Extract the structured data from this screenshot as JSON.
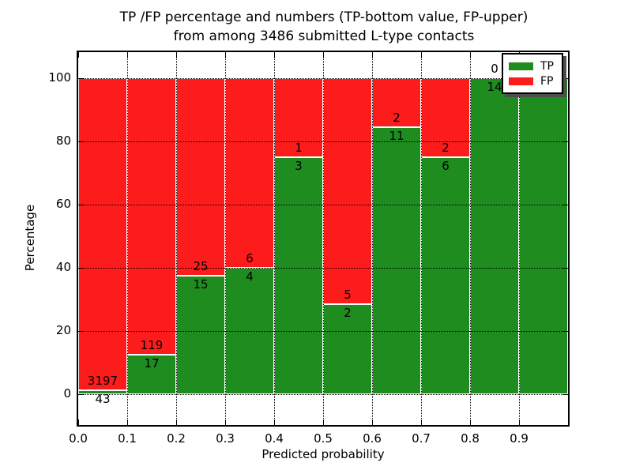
{
  "figure": {
    "title_line1": "TP /FP percentage and numbers (TP-bottom value, FP-upper)",
    "title_line2": "from among 3486 submitted L-type contacts",
    "xlabel": "Predicted probability",
    "ylabel": "Percentage"
  },
  "legend": {
    "position": "upper right",
    "items": [
      {
        "label": "TP",
        "color": "#1E8C1E"
      },
      {
        "label": "FP",
        "color": "#FC1C1C"
      }
    ]
  },
  "chart_data": {
    "type": "bar",
    "stacked": true,
    "normalized_to_percent": true,
    "title": "TP /FP percentage and numbers (TP-bottom value, FP-upper)\nfrom among 3486 submitted L-type contacts",
    "xlabel": "Predicted probability",
    "ylabel": "Percentage",
    "total_submitted": 3486,
    "xlim": [
      0.0,
      1.0
    ],
    "ylim": [
      -9.75,
      108.25
    ],
    "grid": true,
    "grid_style": "dotted",
    "x_tick_labels": [
      "0.0",
      "0.1",
      "0.2",
      "0.3",
      "0.4",
      "0.5",
      "0.6",
      "0.7",
      "0.8",
      "0.9"
    ],
    "y_tick_values": [
      0,
      20,
      40,
      60,
      80,
      100
    ],
    "y_tick_labels": [
      "0",
      "20",
      "40",
      "60",
      "80",
      "100"
    ],
    "colors": {
      "tp": "#1E8C1E",
      "fp": "#FC1C1C"
    },
    "bins": [
      {
        "range": [
          0.0,
          0.1
        ],
        "tp": 43,
        "fp": 3197
      },
      {
        "range": [
          0.1,
          0.2
        ],
        "tp": 17,
        "fp": 119
      },
      {
        "range": [
          0.2,
          0.3
        ],
        "tp": 15,
        "fp": 25
      },
      {
        "range": [
          0.3,
          0.4
        ],
        "tp": 4,
        "fp": 6
      },
      {
        "range": [
          0.4,
          0.5
        ],
        "tp": 3,
        "fp": 1
      },
      {
        "range": [
          0.5,
          0.6
        ],
        "tp": 2,
        "fp": 5
      },
      {
        "range": [
          0.6,
          0.7
        ],
        "tp": 11,
        "fp": 2
      },
      {
        "range": [
          0.7,
          0.8
        ],
        "tp": 6,
        "fp": 2
      },
      {
        "range": [
          0.8,
          0.9
        ],
        "tp": 14,
        "fp": 0
      },
      {
        "range": [
          0.9,
          1.0
        ],
        "tp": 14,
        "fp": 0
      }
    ]
  }
}
